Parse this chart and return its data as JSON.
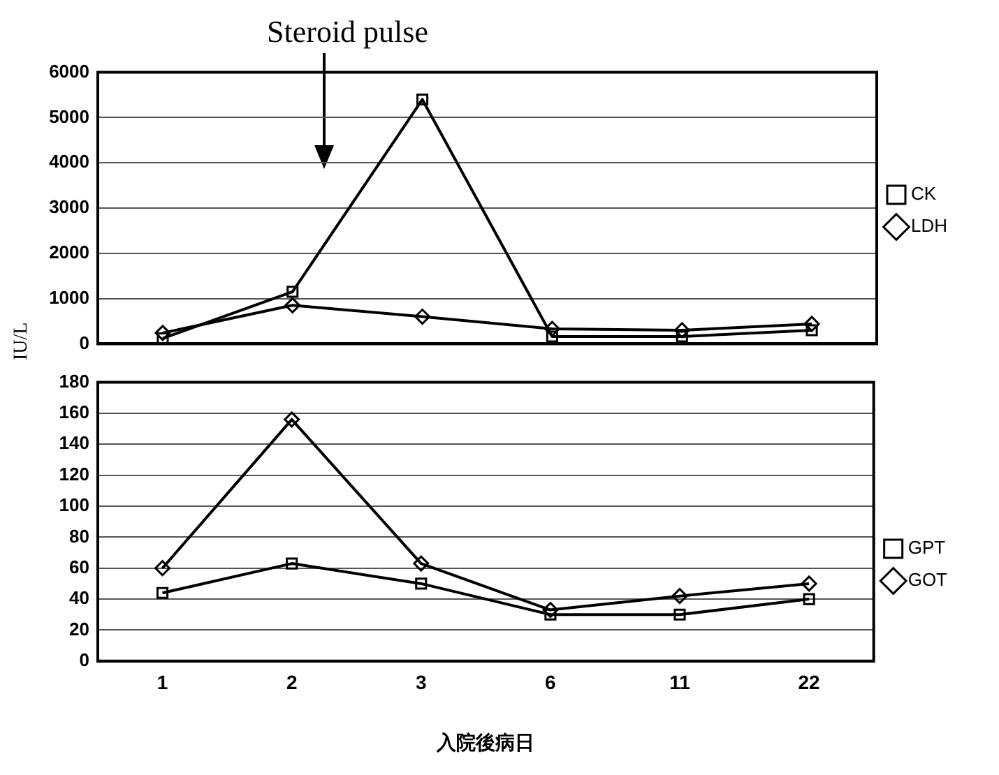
{
  "chart_data": [
    {
      "type": "line",
      "ylabel": "IU/L",
      "annotations": [
        "Steroid pulse"
      ],
      "categories": [
        "1",
        "2",
        "3",
        "6",
        "11",
        "22"
      ],
      "series": [
        {
          "name": "LDH",
          "color": "#000000",
          "marker": "diamond",
          "values": [
            240,
            850,
            600,
            330,
            300,
            440
          ]
        },
        {
          "name": "CK",
          "color": "#000000",
          "marker": "square",
          "values": [
            120,
            1150,
            5400,
            160,
            160,
            300
          ]
        }
      ],
      "ylim": [
        0,
        6000
      ],
      "yticks": [
        0,
        1000,
        2000,
        3000,
        4000,
        5000,
        6000
      ],
      "grid": "y",
      "legend": "right",
      "tick_labels": "y"
    },
    {
      "type": "line",
      "xlabel": "入院後病日",
      "categories": [
        "1",
        "2",
        "3",
        "6",
        "11",
        "22"
      ],
      "series": [
        {
          "name": "GOT",
          "color": "#000000",
          "marker": "diamond",
          "values": [
            60,
            156,
            63,
            33,
            42,
            50
          ]
        },
        {
          "name": "GPT",
          "color": "#000000",
          "marker": "square",
          "values": [
            44,
            63,
            50,
            30,
            30,
            40
          ]
        }
      ],
      "ylim": [
        0,
        180
      ],
      "yticks": [
        0,
        20,
        40,
        60,
        80,
        100,
        120,
        140,
        160,
        180
      ],
      "grid": "y",
      "legend": "right"
    }
  ]
}
